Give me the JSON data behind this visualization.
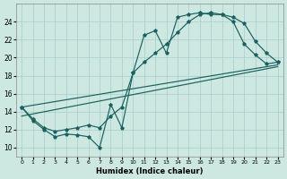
{
  "xlabel": "Humidex (Indice chaleur)",
  "background_color": "#cce8e0",
  "grid_color": "#aacccc",
  "line_color": "#1a6060",
  "xlim": [
    -0.5,
    23.5
  ],
  "ylim": [
    9,
    26
  ],
  "yticks": [
    10,
    12,
    14,
    16,
    18,
    20,
    22,
    24
  ],
  "xticks": [
    0,
    1,
    2,
    3,
    4,
    5,
    6,
    7,
    8,
    9,
    10,
    11,
    12,
    13,
    14,
    15,
    16,
    17,
    18,
    19,
    20,
    21,
    22,
    23
  ],
  "series_jagged_x": [
    0,
    1,
    2,
    3,
    4,
    5,
    6,
    7,
    8,
    9,
    10,
    11,
    12,
    13,
    14,
    15,
    16,
    17,
    18,
    19,
    20,
    21,
    22,
    23
  ],
  "series_jagged_y": [
    14.5,
    13.0,
    12.0,
    11.2,
    11.5,
    11.4,
    11.2,
    10.0,
    14.8,
    12.2,
    18.3,
    22.5,
    23.0,
    20.5,
    24.5,
    24.8,
    25.0,
    24.8,
    24.8,
    24.0,
    21.5,
    20.3,
    19.3,
    19.5
  ],
  "series_smooth_x": [
    0,
    1,
    2,
    3,
    4,
    5,
    6,
    7,
    8,
    9,
    10,
    11,
    12,
    13,
    14,
    15,
    16,
    17,
    18,
    19,
    20,
    21,
    22,
    23
  ],
  "series_smooth_y": [
    14.5,
    13.2,
    12.2,
    11.8,
    12.0,
    12.2,
    12.5,
    12.2,
    13.5,
    14.5,
    18.3,
    19.5,
    20.5,
    21.5,
    22.8,
    24.0,
    24.8,
    25.0,
    24.8,
    24.5,
    23.8,
    21.8,
    20.5,
    19.5
  ],
  "line1_x": [
    0,
    23
  ],
  "line1_y": [
    14.5,
    19.2
  ],
  "line2_x": [
    0,
    23
  ],
  "line2_y": [
    13.5,
    19.0
  ]
}
